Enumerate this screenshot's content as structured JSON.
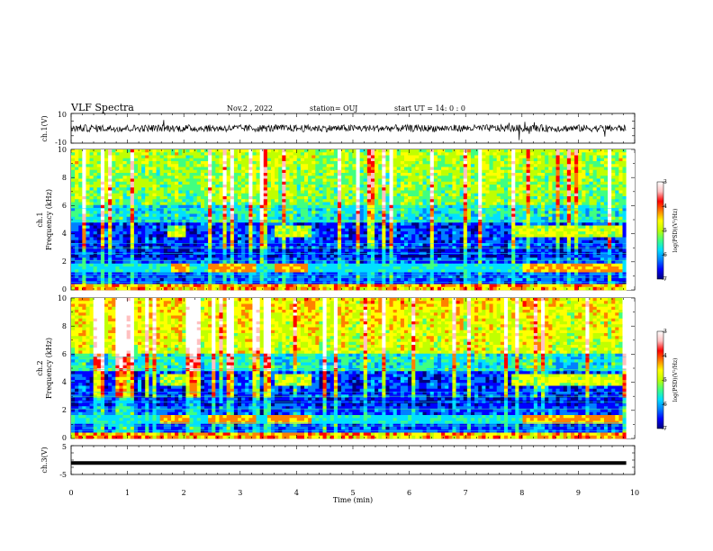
{
  "header": {
    "title": "VLF Spectra",
    "date": "Nov.2 , 2022",
    "station": "station= OUJ",
    "start": "start UT = 14: 0 : 0"
  },
  "colors": {
    "spectro_scale": [
      "#00007a",
      "#0000ff",
      "#0080ff",
      "#00e0ff",
      "#40ff80",
      "#c0ff00",
      "#ffff00",
      "#ff8000",
      "#ff0000",
      "#ffc0c0",
      "#ffffff"
    ],
    "waveform": "#000000"
  },
  "chart_data": [
    {
      "id": "ch1-waveform",
      "type": "line",
      "ylabel": "ch.1(V)",
      "ylim": [
        -10,
        10
      ],
      "yticks": [
        "10",
        "-10"
      ],
      "xlim": [
        0,
        10
      ],
      "description_of_signal": "noise around 0 V, amplitude ~1 V, sparse spikes"
    },
    {
      "id": "ch1-spectrogram",
      "type": "heatmap",
      "ylabel_line1": "ch.1",
      "ylabel_line2": "Frequency (kHz)",
      "ylim": [
        0,
        10
      ],
      "yticks": [
        "0",
        "2",
        "4",
        "6",
        "8",
        "10"
      ],
      "xlim": [
        0,
        10
      ],
      "colorbar": {
        "label": "log(PSD)(V²/Hz)",
        "range": [
          -7,
          -3
        ],
        "ticks": [
          "-3",
          "-4",
          "-5",
          "-6",
          "-7"
        ]
      },
      "features": {
        "data_end_min": 9.85,
        "bright_band_khz": [
          1.3,
          1.8
        ],
        "band_4khz_segments_min": [
          [
            1.7,
            2.05
          ],
          [
            3.6,
            4.3
          ],
          [
            7.8,
            9.8
          ]
        ],
        "band_1_5khz_segments_min": [
          [
            1.8,
            2.1
          ],
          [
            2.4,
            3.3
          ],
          [
            3.6,
            4.2
          ],
          [
            8.0,
            9.8
          ]
        ]
      }
    },
    {
      "id": "ch2-spectrogram",
      "type": "heatmap",
      "ylabel_line1": "ch.2",
      "ylabel_line2": "Frequency (kHz)",
      "ylim": [
        0,
        10
      ],
      "yticks": [
        "0",
        "2",
        "4",
        "6",
        "8",
        "10"
      ],
      "xlim": [
        0,
        10
      ],
      "colorbar": {
        "label": "log(PSD)(V²/Hz)",
        "range": [
          -7,
          -3
        ],
        "ticks": [
          "-3",
          "-4",
          "-5",
          "-6",
          "-7"
        ]
      },
      "features": {
        "data_end_min": 9.85,
        "bright_band_khz": [
          1.1,
          1.6
        ],
        "band_4khz_segments_min": [
          [
            1.6,
            2.1
          ],
          [
            3.6,
            4.3
          ],
          [
            7.8,
            9.8
          ]
        ],
        "band_1_5khz_segments_min": [
          [
            1.6,
            2.1
          ],
          [
            2.4,
            3.3
          ],
          [
            3.5,
            4.3
          ],
          [
            8.0,
            9.8
          ]
        ]
      }
    },
    {
      "id": "ch3-waveform",
      "type": "line",
      "ylabel": "ch.3(V)",
      "ylim": [
        -5,
        5
      ],
      "yticks": [
        "5",
        "-5"
      ],
      "xlim": [
        0,
        10
      ],
      "x": [
        0,
        9.85
      ],
      "y": [
        -1,
        -1
      ]
    }
  ],
  "xaxis": {
    "label": "Time (min)",
    "ticks": [
      "0",
      "1",
      "2",
      "3",
      "4",
      "5",
      "6",
      "7",
      "8",
      "9",
      "10"
    ]
  }
}
